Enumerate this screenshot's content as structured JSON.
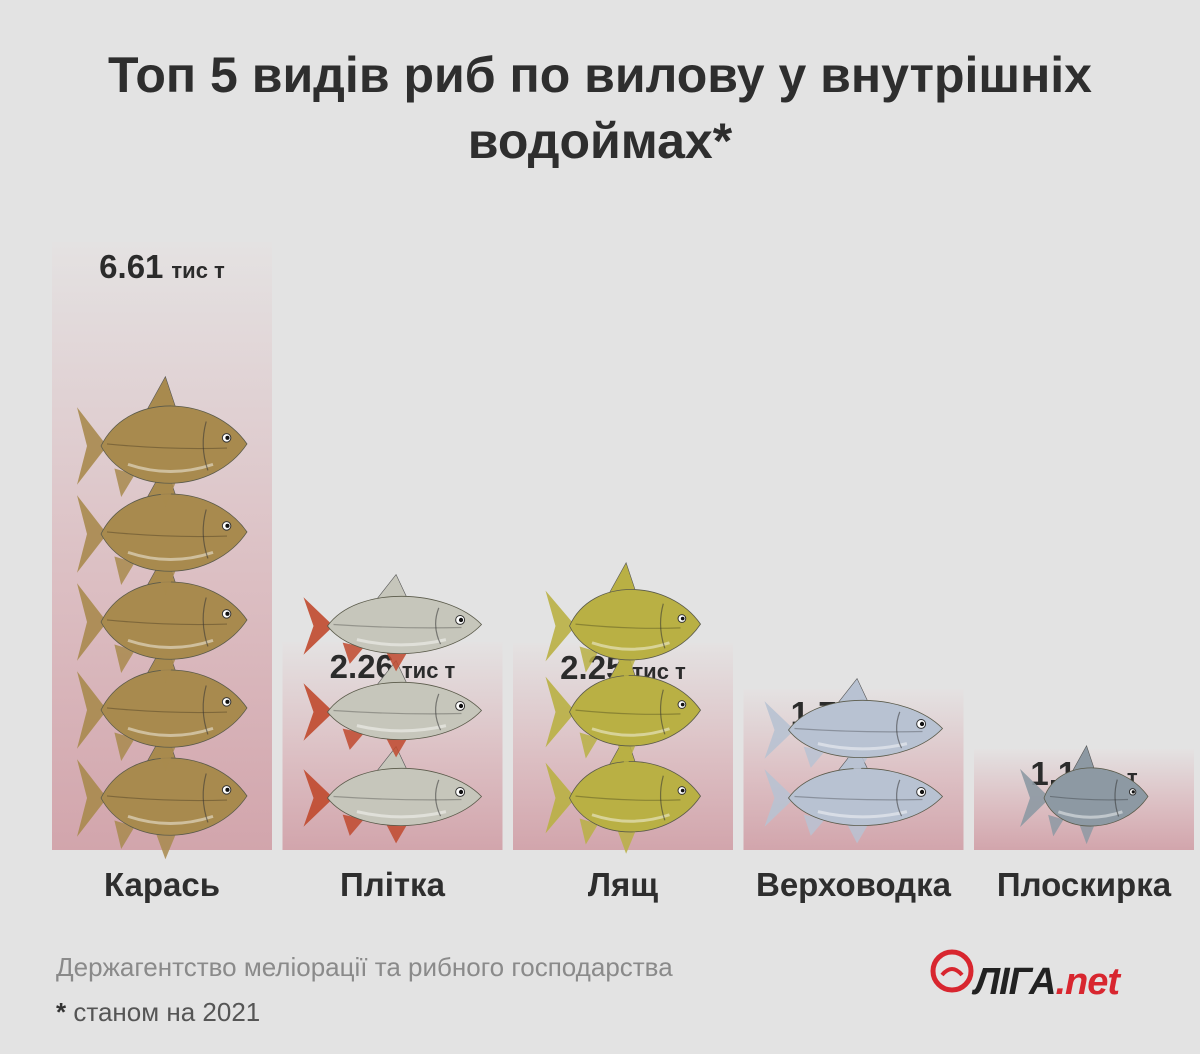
{
  "title": "Топ 5 видів риб по вилову у внутрішніх водоймах*",
  "chart_data": {
    "type": "bar",
    "unit": "тис т",
    "categories": [
      "Карась",
      "Плітка",
      "Лящ",
      "Верховодка",
      "Плоскирка"
    ],
    "values": [
      6.61,
      2.26,
      2.25,
      1.75,
      1.1
    ],
    "value_labels": [
      "6.61",
      "2.26",
      "2.25",
      "1.75",
      "1.1"
    ],
    "fish_icon_counts": [
      5,
      3,
      3,
      2,
      1
    ],
    "fish_icons": [
      "crucian-carp-icon",
      "roach-icon",
      "bream-icon",
      "bleak-icon",
      "white-bream-icon"
    ],
    "colors": {
      "bar_top": "#e3e3e3",
      "bar_bottom": "#d4a8ae",
      "crucian": "#a88a4e",
      "roach": "#c6c6bb",
      "bream": "#b9b044",
      "bleak": "#b8c2d2",
      "white_bream": "#8d99a3",
      "fin_red": "#c0492e"
    }
  },
  "footer": {
    "source": "Держагентство меліорації та рибного господарства",
    "note_star": "*",
    "note": "станом на 2021"
  },
  "logo": {
    "name": "ЛІГА",
    "suffix": ".net",
    "accent": "#d8262f"
  }
}
